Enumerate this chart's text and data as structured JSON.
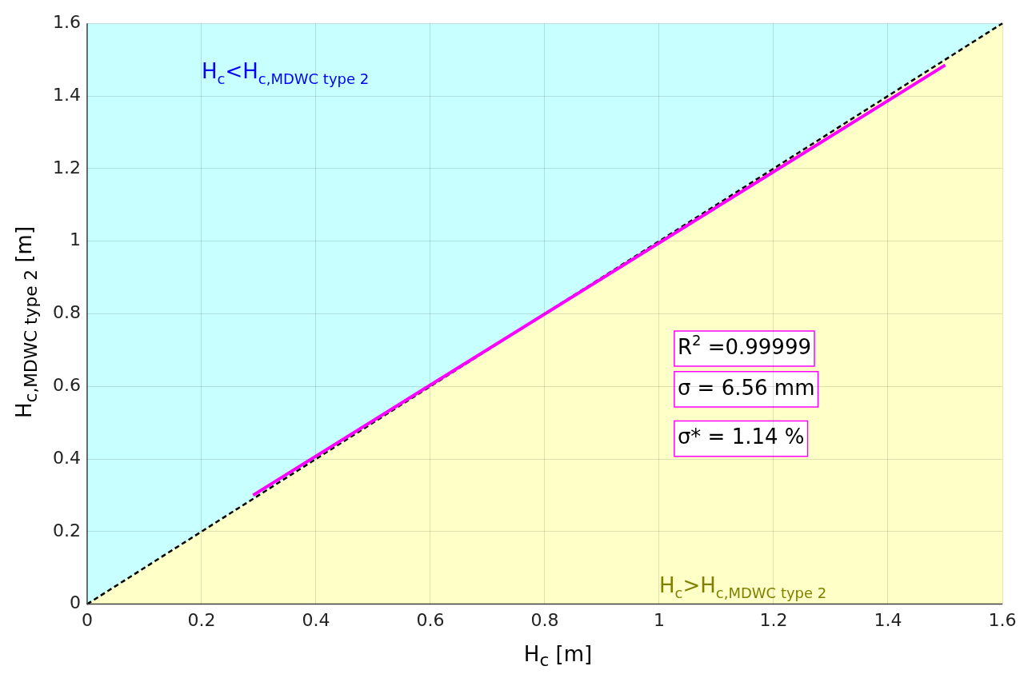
{
  "chart_data": {
    "type": "line",
    "xlabel": "H$_{c}$ [m]",
    "ylabel": "H$_{c,MDWC type 2}$ [m]",
    "xlim": [
      0,
      1.6
    ],
    "ylim": [
      0,
      1.6
    ],
    "xticks": [
      0,
      0.2,
      0.4,
      0.6,
      0.8,
      1,
      1.2,
      1.4,
      1.6
    ],
    "yticks": [
      0,
      0.2,
      0.4,
      0.6,
      0.8,
      1,
      1.2,
      1.4,
      1.6
    ],
    "grid": true,
    "legend": false,
    "series": [
      {
        "type": "area",
        "color": "#ffffc8",
        "line_style": "dashed",
        "x": [
          0,
          1.6
        ],
        "values": [
          0,
          1.6
        ]
      },
      {
        "color": "#ff00ff",
        "x": [
          0.29,
          1.5
        ],
        "values": [
          0.3,
          1.485
        ]
      }
    ],
    "annotations": [
      "H$_{c}$<H$_{c,MDWC type 2}$",
      "H$_{c}$>H$_{c,MDWC type 2}$",
      "R$^{2}$ =0.99999",
      "σ = 6.56 mm",
      "σ* = 1.14 %"
    ]
  }
}
